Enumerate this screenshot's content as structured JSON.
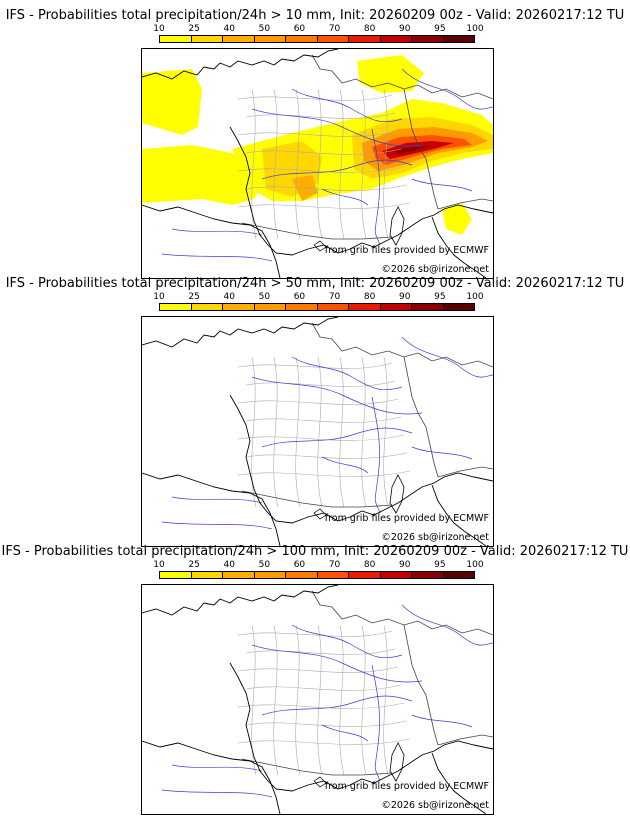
{
  "colorbar": {
    "ticks": [
      "10",
      "25",
      "40",
      "50",
      "60",
      "70",
      "80",
      "90",
      "95",
      "100"
    ],
    "colors": [
      "#ffff00",
      "#ffd700",
      "#ffae00",
      "#ff9a00",
      "#ff7a00",
      "#ff5200",
      "#e81c00",
      "#c40000",
      "#8a0000",
      "#5a0000"
    ]
  },
  "credits": {
    "source": "from grib files provided by ECMWF",
    "copyright": "©2026 sb@irizone.net"
  },
  "panels": [
    {
      "title": "IFS - Probabilities total precipitation/24h > 10 mm, Init: 20260209 00z - Valid: 20260217:12 TU",
      "has_precip": true
    },
    {
      "title": "IFS - Probabilities total precipitation/24h > 50 mm, Init: 20260209 00z - Valid: 20260217:12 TU",
      "has_precip": false
    },
    {
      "title": "IFS - Probabilities total precipitation/24h > 100 mm, Init: 20260209 00z - Valid: 20260217:12 TU",
      "has_precip": false
    }
  ]
}
